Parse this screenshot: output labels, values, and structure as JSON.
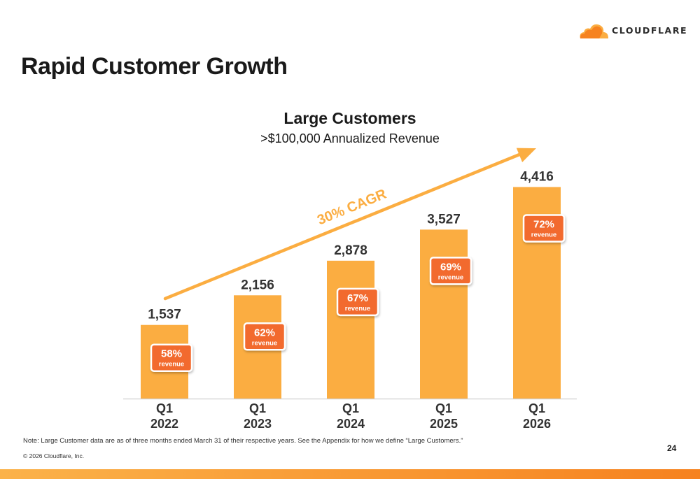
{
  "brand": {
    "name": "CLOUDFLARE",
    "logo_icon": "cloud-icon",
    "colors": {
      "orange": "#f6821f",
      "light_orange": "#fbad41",
      "bar": "#fbad41",
      "badge": "#f26b2d"
    }
  },
  "page": {
    "title": "Rapid Customer Growth",
    "number": "24"
  },
  "footer": {
    "note": "Note: Large Customer data are as of three months ended March 31 of their respective years. See the Appendix for how we define “Large Customers.”",
    "copyright": "© 2026 Cloudflare, Inc."
  },
  "chart_data": {
    "type": "bar",
    "title": "Large Customers",
    "subtitle": ">$100,000 Annualized Revenue",
    "categories": [
      [
        "Q1",
        "2022"
      ],
      [
        "Q1",
        "2023"
      ],
      [
        "Q1",
        "2024"
      ],
      [
        "Q1",
        "2025"
      ],
      [
        "Q1",
        "2026"
      ]
    ],
    "values": [
      1537,
      2156,
      2878,
      3527,
      4416
    ],
    "value_labels": [
      "1,537",
      "2,156",
      "2,878",
      "3,527",
      "4,416"
    ],
    "revenue_share": [
      "58%",
      "62%",
      "67%",
      "69%",
      "72%"
    ],
    "revenue_label": "revenue",
    "annotation": "30% CAGR",
    "ylim": [
      0,
      4700
    ],
    "grid": false,
    "legend": "none"
  }
}
